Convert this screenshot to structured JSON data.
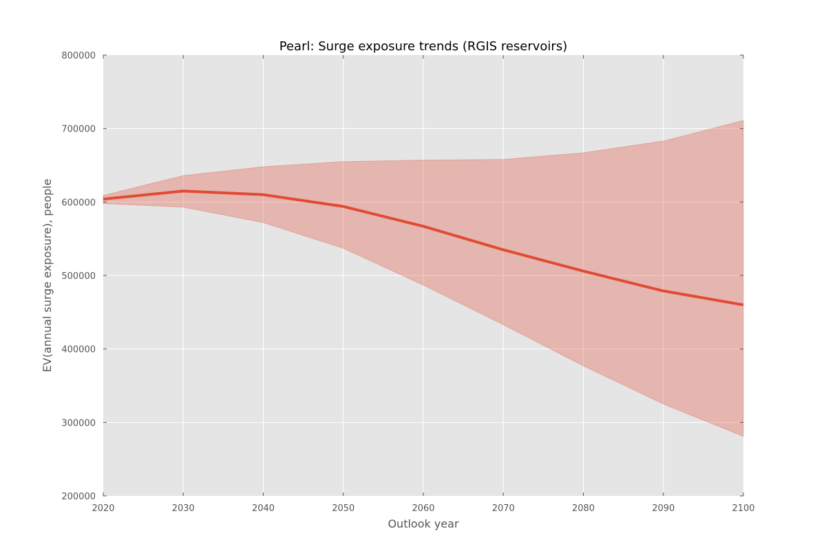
{
  "chart_data": {
    "type": "line",
    "title": "Pearl: Surge exposure trends (RGIS reservoirs)",
    "xlabel": "Outlook year",
    "ylabel": "EV(annual surge exposure), people",
    "xlim": [
      2020,
      2100
    ],
    "ylim": [
      200000,
      800000
    ],
    "x_ticks": [
      2020,
      2030,
      2040,
      2050,
      2060,
      2070,
      2080,
      2090,
      2100
    ],
    "y_ticks": [
      200000,
      300000,
      400000,
      500000,
      600000,
      700000,
      800000
    ],
    "x_tick_labels": [
      "2020",
      "2030",
      "2040",
      "2050",
      "2060",
      "2070",
      "2080",
      "2090",
      "2100"
    ],
    "y_tick_labels": [
      "200000",
      "300000",
      "400000",
      "500000",
      "600000",
      "700000",
      "800000"
    ],
    "grid": true,
    "legend": "none",
    "x": [
      2020,
      2030,
      2040,
      2050,
      2060,
      2070,
      2080,
      2090,
      2100
    ],
    "series": [
      {
        "values": [
          604000,
          615000,
          610000,
          594000,
          567000,
          535000,
          506000,
          479000,
          460000
        ],
        "lower": [
          598000,
          593000,
          572000,
          537000,
          487000,
          433000,
          377000,
          325000,
          281000
        ],
        "upper": [
          609000,
          636000,
          648000,
          655000,
          657000,
          658000,
          667000,
          683000,
          711000
        ]
      }
    ],
    "colors": {
      "line": "#E24A33",
      "band": "#E24A33",
      "plot_background": "#E5E5E5",
      "grid": "#FFFFFF",
      "tick": "#555555"
    }
  }
}
